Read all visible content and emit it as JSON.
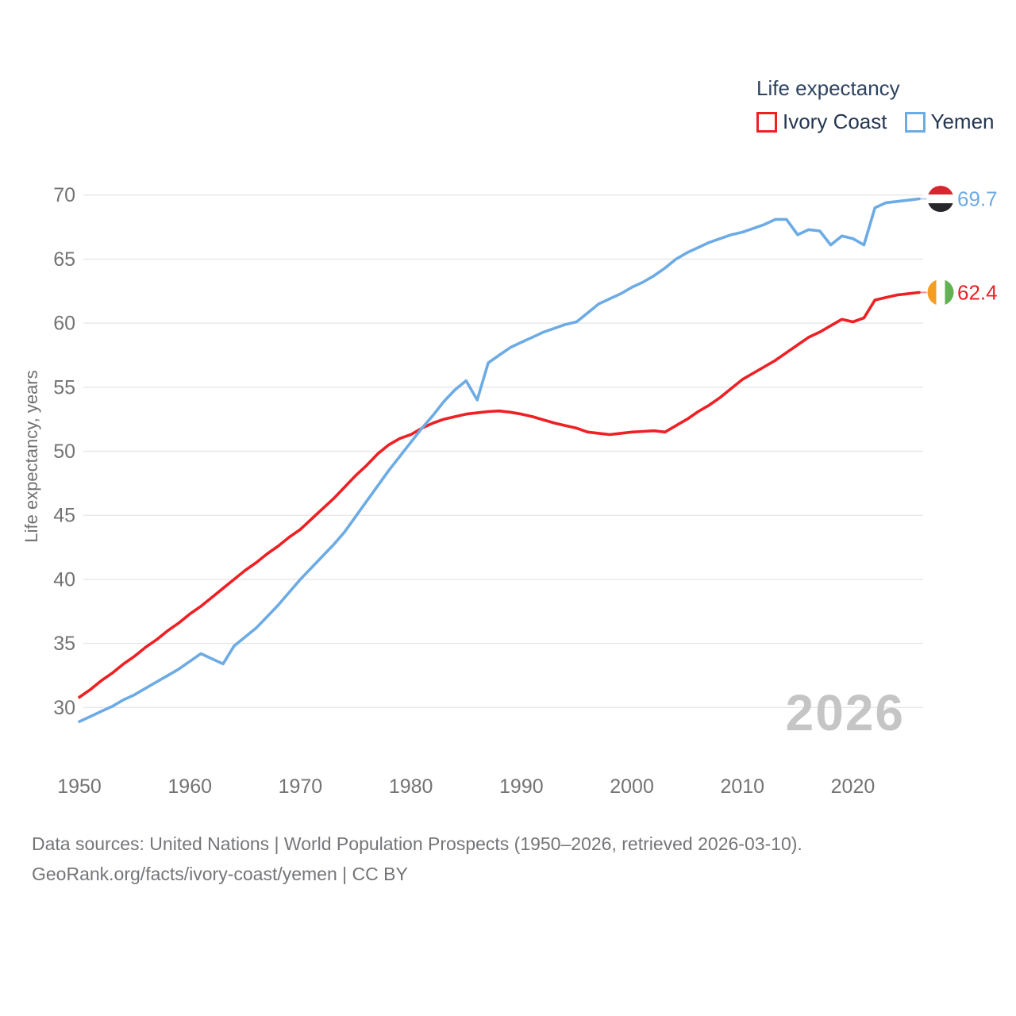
{
  "legend": {
    "title": "Life expectancy",
    "items": [
      {
        "label": "Ivory Coast",
        "color": "#ee2024"
      },
      {
        "label": "Yemen",
        "color": "#6cabe4"
      }
    ]
  },
  "watermark": "2026",
  "footer": {
    "line1": "Data sources: United Nations | World Population Prospects (1950–2026, retrieved 2026-03-10).",
    "line2": "GeoRank.org/facts/ivory-coast/yemen | CC BY"
  },
  "chart_data": {
    "type": "line",
    "title": "Life expectancy",
    "xlabel": "",
    "ylabel": "Life expectancy, years",
    "xlim": [
      1950,
      2026
    ],
    "ylim": [
      30,
      70
    ],
    "xticks": [
      1950,
      1960,
      1970,
      1980,
      1990,
      2000,
      2010,
      2020
    ],
    "yticks": [
      30,
      35,
      40,
      45,
      50,
      55,
      60,
      65,
      70
    ],
    "grid": "horizontal",
    "legend_position": "top-right",
    "colors": {
      "grid": "#e7e7e7",
      "tick_label": "#737373",
      "axis_title": "#707070",
      "watermark": "#c5c5c5"
    },
    "x": [
      1950,
      1951,
      1952,
      1953,
      1954,
      1955,
      1956,
      1957,
      1958,
      1959,
      1960,
      1961,
      1962,
      1963,
      1964,
      1965,
      1966,
      1967,
      1968,
      1969,
      1970,
      1971,
      1972,
      1973,
      1974,
      1975,
      1976,
      1977,
      1978,
      1979,
      1980,
      1981,
      1982,
      1983,
      1984,
      1985,
      1986,
      1987,
      1988,
      1989,
      1990,
      1991,
      1992,
      1993,
      1994,
      1995,
      1996,
      1997,
      1998,
      1999,
      2000,
      2001,
      2002,
      2003,
      2004,
      2005,
      2006,
      2007,
      2008,
      2009,
      2010,
      2011,
      2012,
      2013,
      2014,
      2015,
      2016,
      2017,
      2018,
      2019,
      2020,
      2021,
      2022,
      2023,
      2024,
      2025,
      2026
    ],
    "series": [
      {
        "name": "Ivory Coast",
        "color": "#ee2024",
        "end_label": "62.4",
        "end_value": 62.4,
        "flag": {
          "name": "ivory-coast-flag",
          "orientation": "vertical",
          "colors": [
            "#f59d20",
            "#ffffff",
            "#62b152"
          ]
        },
        "values": [
          30.8,
          31.4,
          32.1,
          32.7,
          33.4,
          34.0,
          34.7,
          35.3,
          36.0,
          36.6,
          37.3,
          37.9,
          38.6,
          39.3,
          40.0,
          40.7,
          41.3,
          42.0,
          42.6,
          43.3,
          43.9,
          44.7,
          45.5,
          46.3,
          47.2,
          48.1,
          48.9,
          49.8,
          50.5,
          51.0,
          51.3,
          51.8,
          52.2,
          52.5,
          52.7,
          52.9,
          53.0,
          53.1,
          53.15,
          53.05,
          52.9,
          52.7,
          52.45,
          52.2,
          52.0,
          51.8,
          51.5,
          51.4,
          51.3,
          51.4,
          51.5,
          51.55,
          51.6,
          51.5,
          52.0,
          52.5,
          53.1,
          53.6,
          54.2,
          54.9,
          55.6,
          56.1,
          56.6,
          57.1,
          57.7,
          58.3,
          58.9,
          59.3,
          59.8,
          60.3,
          60.1,
          60.4,
          61.8,
          62.0,
          62.2,
          62.3,
          62.4
        ]
      },
      {
        "name": "Yemen",
        "color": "#6cabe4",
        "end_label": "69.7",
        "end_value": 69.7,
        "flag": {
          "name": "yemen-flag",
          "orientation": "horizontal",
          "colors": [
            "#d8252f",
            "#ffffff",
            "#26262b"
          ]
        },
        "values": [
          28.9,
          29.3,
          29.7,
          30.1,
          30.6,
          31.0,
          31.5,
          32.0,
          32.5,
          33.0,
          33.6,
          34.2,
          33.8,
          33.4,
          34.8,
          35.5,
          36.2,
          37.1,
          38.0,
          39.0,
          40.0,
          40.9,
          41.8,
          42.7,
          43.7,
          44.9,
          46.1,
          47.3,
          48.5,
          49.6,
          50.7,
          51.8,
          52.8,
          53.9,
          54.8,
          55.5,
          54.0,
          56.9,
          57.5,
          58.1,
          58.5,
          58.9,
          59.3,
          59.6,
          59.9,
          60.1,
          60.8,
          61.5,
          61.9,
          62.3,
          62.8,
          63.2,
          63.7,
          64.3,
          65.0,
          65.5,
          65.9,
          66.3,
          66.6,
          66.9,
          67.1,
          67.4,
          67.7,
          68.1,
          68.1,
          66.9,
          67.3,
          67.2,
          66.1,
          66.8,
          66.6,
          66.1,
          69.0,
          69.4,
          69.5,
          69.6,
          69.7
        ]
      }
    ]
  }
}
